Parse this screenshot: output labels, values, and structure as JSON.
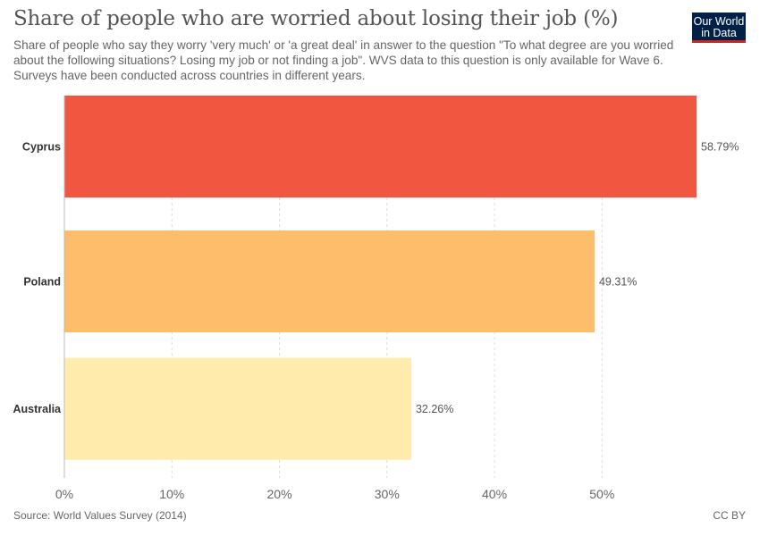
{
  "header": {
    "title": "Share of people who are worried about losing their job (%)",
    "subtitle": "Share of people who say they worry 'very much' or 'a great deal' in answer to the question \"To what degree are you worried about the following situations? Losing my job or not finding a job\". WVS data to this question is only available for Wave 6. Surveys have been conducted across countries in different years."
  },
  "logo": {
    "line1": "Our World",
    "line2": "in Data"
  },
  "footer": {
    "source": "Source: World Values Survey (2014)",
    "license": "CC BY"
  },
  "colors": {
    "bars": [
      "#ef4d36",
      "#fdb962",
      "#ffeba8"
    ]
  },
  "chart_data": {
    "type": "bar",
    "orientation": "horizontal",
    "categories": [
      "Cyprus",
      "Poland",
      "Australia"
    ],
    "values": [
      58.79,
      49.31,
      32.26
    ],
    "value_labels": [
      "58.79%",
      "49.31%",
      "32.26%"
    ],
    "xticks": [
      "0%",
      "10%",
      "20%",
      "30%",
      "40%",
      "50%"
    ],
    "xlim": [
      0,
      58.79
    ],
    "grid": true
  }
}
